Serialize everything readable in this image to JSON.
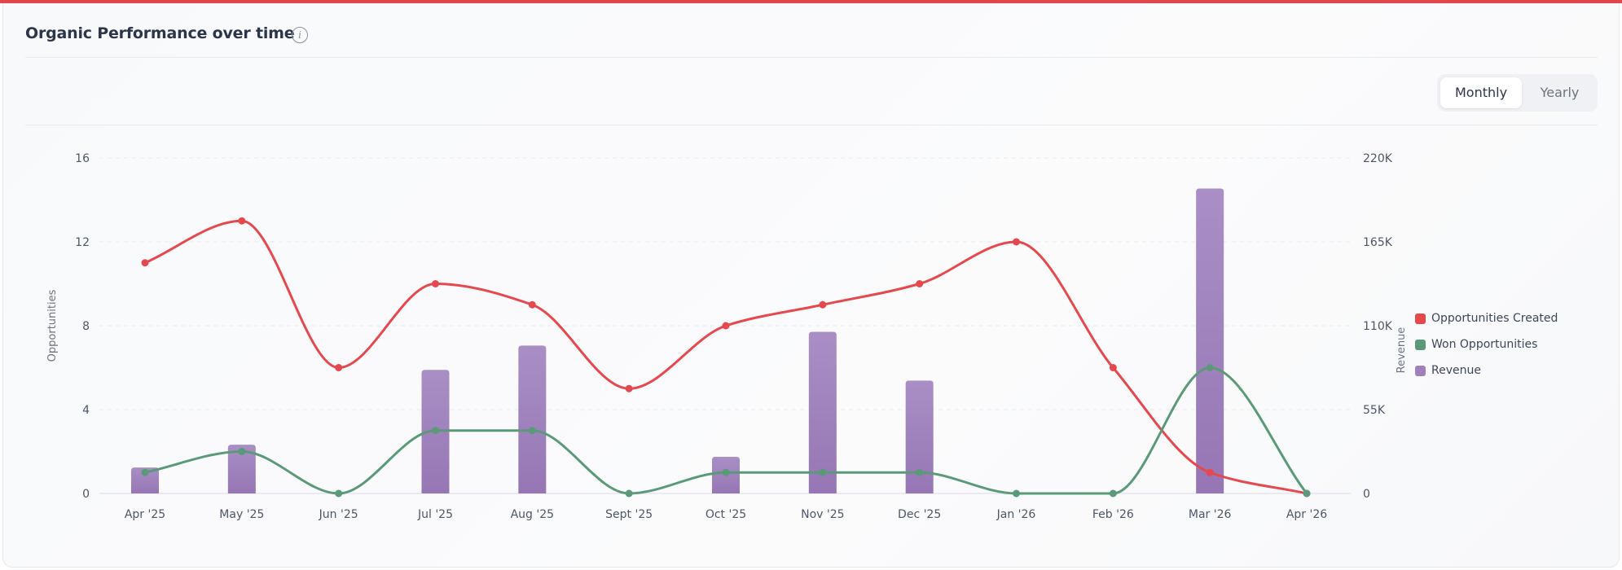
{
  "header": {
    "title": "Organic Performance over time",
    "info_icon": "info-icon"
  },
  "toggle": {
    "options": [
      "Monthly",
      "Yearly"
    ],
    "selected": "Monthly"
  },
  "chart_data": {
    "type": "bar+line",
    "categories": [
      "Apr '25",
      "May '25",
      "Jun '25",
      "Jul '25",
      "Aug '25",
      "Sept '25",
      "Oct '25",
      "Nov '25",
      "Dec '25",
      "Jan '26",
      "Feb '26",
      "Mar '26",
      "Apr '26"
    ],
    "y_left": {
      "label": "Opportunities",
      "ylim": [
        0,
        16
      ],
      "ticks": [
        "0",
        "4",
        "8",
        "12",
        "16"
      ]
    },
    "y_right": {
      "label": "Revenue",
      "ylim": [
        0,
        220000
      ],
      "ticks": [
        "0",
        "55K",
        "110K",
        "165K",
        "220K"
      ]
    },
    "series": [
      {
        "name": "Opportunities Created",
        "type": "line",
        "axis": "left",
        "color": "#e5484d",
        "values": [
          11,
          13,
          6,
          10,
          9,
          5,
          8,
          9,
          10,
          12,
          6,
          1,
          0
        ]
      },
      {
        "name": "Won Opportunities",
        "type": "line",
        "axis": "left",
        "color": "#5a9a78",
        "values": [
          1,
          2,
          0,
          3,
          3,
          0,
          1,
          1,
          1,
          0,
          0,
          6,
          0
        ]
      },
      {
        "name": "Revenue",
        "type": "bar",
        "axis": "right",
        "color": "#9f7fbc",
        "values": [
          17000,
          32000,
          0,
          81000,
          97000,
          0,
          24000,
          106000,
          74000,
          0,
          0,
          200000,
          0
        ]
      }
    ],
    "grid": true,
    "legend_position": "right"
  }
}
